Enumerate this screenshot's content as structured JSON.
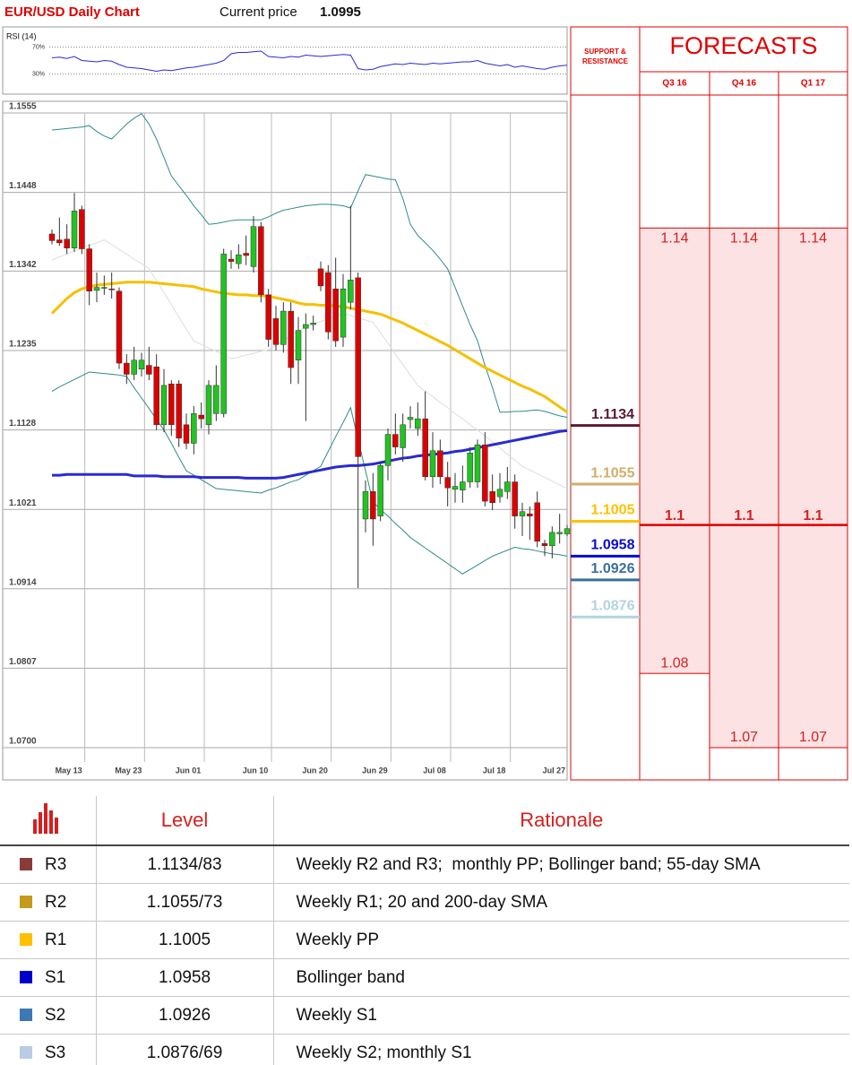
{
  "header": {
    "title": "EUR/USD Daily Chart",
    "current_price_label": "Current price",
    "current_price": 1.0995
  },
  "chart_data": [
    {
      "type": "line",
      "label": "RSI (14)",
      "color": "#2a2ad8",
      "values": [
        54,
        55,
        53,
        56,
        50,
        49,
        48,
        50,
        49,
        44,
        40,
        39,
        38,
        36,
        34,
        36,
        35,
        37,
        39,
        40,
        42,
        44,
        46,
        50,
        60,
        62,
        62,
        63,
        64,
        56,
        55,
        54,
        56,
        55,
        58,
        57,
        56,
        57,
        58,
        59,
        58,
        38,
        36,
        37,
        41,
        43,
        45,
        44,
        46,
        45,
        44,
        46,
        45,
        46,
        47,
        48,
        48,
        50,
        46,
        44,
        42,
        44,
        40,
        42,
        40,
        38,
        37,
        40,
        42,
        43
      ],
      "ylim": [
        0,
        100
      ],
      "yticks": [
        {
          "value": 70,
          "label": "70%"
        },
        {
          "value": 30,
          "label": "30%"
        }
      ]
    },
    {
      "type": "candlestick",
      "up_color": "#22c322",
      "down_color": "#dd0000",
      "categories": [
        null,
        null,
        "May 13",
        null,
        null,
        null,
        null,
        null,
        null,
        null,
        "May 23",
        null,
        null,
        null,
        null,
        null,
        null,
        null,
        "Jun 01",
        null,
        null,
        null,
        null,
        null,
        null,
        null,
        null,
        "Jun 10",
        null,
        null,
        null,
        null,
        null,
        null,
        null,
        "Jun 20",
        null,
        null,
        null,
        null,
        null,
        null,
        null,
        "Jun 29",
        null,
        null,
        null,
        null,
        null,
        null,
        null,
        "Jul 08",
        null,
        null,
        null,
        null,
        null,
        null,
        null,
        "Jul 18",
        null,
        null,
        null,
        null,
        null,
        null,
        null,
        "Jul 27",
        null,
        null
      ],
      "open": [
        1.1392,
        1.1384,
        1.1385,
        1.1373,
        1.1425,
        1.1372,
        1.1316,
        1.1319,
        1.1318,
        1.1315,
        1.1218,
        1.1203,
        1.121,
        1.1215,
        1.1213,
        1.1135,
        1.119,
        1.119,
        1.1135,
        1.111,
        1.1148,
        1.1135,
        1.115,
        1.115,
        1.1358,
        1.1352,
        1.1366,
        1.1348,
        1.1402,
        1.131,
        1.1278,
        1.1243,
        1.1288,
        1.1222,
        1.1265,
        1.127,
        1.1345,
        1.134,
        1.1318,
        1.1253,
        1.13,
        1.1333,
        1.1008,
        1.1045,
        1.1012,
        1.108,
        1.1122,
        1.1104,
        1.1142,
        1.113,
        1.1143,
        1.1065,
        1.11,
        1.1064,
        1.1048,
        1.1047,
        1.1058,
        1.1058,
        1.1108,
        1.1045,
        1.1038,
        1.1045,
        1.1058,
        1.1012,
        1.1015,
        1.103,
        1.0975,
        1.0972,
        1.0988,
        1.0988
      ],
      "high": [
        1.1398,
        1.1414,
        1.1405,
        1.1447,
        1.143,
        1.1378,
        1.134,
        1.1336,
        1.134,
        1.132,
        1.123,
        1.124,
        1.1232,
        1.124,
        1.123,
        1.121,
        1.1195,
        1.1195,
        1.115,
        1.116,
        1.1165,
        1.1195,
        1.1215,
        1.1372,
        1.137,
        1.1378,
        1.139,
        1.1416,
        1.1408,
        1.1318,
        1.1295,
        1.13,
        1.13,
        1.128,
        1.1285,
        1.1282,
        1.1355,
        1.135,
        1.136,
        1.1338,
        1.143,
        1.134,
        1.106,
        1.107,
        1.1085,
        1.113,
        1.115,
        1.115,
        1.116,
        1.1165,
        1.118,
        1.1125,
        1.1115,
        1.1085,
        1.107,
        1.108,
        1.1105,
        1.1115,
        1.1125,
        1.1068,
        1.107,
        1.1078,
        1.1068,
        1.103,
        1.1025,
        1.1045,
        1.098,
        1.0998,
        1.1015,
        1.1
      ],
      "low": [
        1.1378,
        1.1376,
        1.1365,
        1.1368,
        1.1365,
        1.1296,
        1.13,
        1.131,
        1.1305,
        1.121,
        1.119,
        1.1195,
        1.12,
        1.1195,
        1.1128,
        1.1125,
        1.112,
        1.1105,
        1.1102,
        1.1095,
        1.113,
        1.1122,
        1.114,
        1.1145,
        1.1345,
        1.1345,
        1.135,
        1.134,
        1.13,
        1.124,
        1.1235,
        1.1232,
        1.119,
        1.119,
        1.114,
        1.1262,
        1.1315,
        1.125,
        1.124,
        1.124,
        1.129,
        1.0915,
        1.099,
        1.0972,
        1.1005,
        1.106,
        1.1095,
        1.1085,
        1.113,
        1.112,
        1.106,
        1.105,
        1.1055,
        1.1025,
        1.103,
        1.103,
        1.105,
        1.105,
        1.1025,
        1.102,
        1.103,
        1.1035,
        1.0995,
        1.0985,
        1.098,
        1.097,
        1.0958,
        1.0955,
        1.0975,
        1.0985
      ],
      "close": [
        1.1383,
        1.138,
        1.1373,
        1.1423,
        1.1372,
        1.1315,
        1.132,
        1.132,
        1.1317,
        1.1218,
        1.1203,
        1.1222,
        1.1222,
        1.1203,
        1.1135,
        1.1188,
        1.1135,
        1.1117,
        1.111,
        1.115,
        1.1143,
        1.1188,
        1.1188,
        1.1365,
        1.1355,
        1.1364,
        1.1363,
        1.1402,
        1.131,
        1.125,
        1.1243,
        1.1288,
        1.1212,
        1.1262,
        1.127,
        1.1272,
        1.1322,
        1.126,
        1.1248,
        1.1318,
        1.133,
        1.1092,
        1.1045,
        1.1008,
        1.108,
        1.1122,
        1.1105,
        1.1135,
        1.1145,
        1.1143,
        1.1065,
        1.11,
        1.1065,
        1.105,
        1.1052,
        1.1058,
        1.1097,
        1.1108,
        1.1032,
        1.103,
        1.1048,
        1.1058,
        1.1012,
        1.1018,
        1.1012,
        1.0978,
        1.0972,
        1.099,
        1.099,
        1.0995
      ],
      "series": [
        {
          "color": "#f5c000",
          "values": [
            1.1285,
            1.1295,
            1.1305,
            1.1313,
            1.1318,
            1.1321,
            1.1323,
            1.1324,
            1.1325,
            1.1326,
            1.1327,
            1.1327,
            1.1327,
            1.1327,
            1.1326,
            1.1325,
            1.1324,
            1.1323,
            1.1322,
            1.1321,
            1.1318,
            1.1316,
            1.1314,
            1.1312,
            1.1311,
            1.131,
            1.131,
            1.1309,
            1.1309,
            1.1308,
            1.1306,
            1.1304,
            1.1302,
            1.1299,
            1.1297,
            1.1297,
            1.1296,
            1.1296,
            1.1295,
            1.1294,
            1.1292,
            1.129,
            1.1288,
            1.1286,
            1.1284,
            1.128,
            1.1276,
            1.1272,
            1.1267,
            1.1262,
            1.1257,
            1.1252,
            1.1247,
            1.1242,
            1.1236,
            1.123,
            1.1224,
            1.1218,
            1.1212,
            1.1207,
            1.1202,
            1.1197,
            1.1192,
            1.1187,
            1.1183,
            1.1178,
            1.1173,
            1.1166,
            1.1159,
            1.1152
          ]
        },
        {
          "color": "#2a2ad0",
          "values": [
            1.1067,
            1.1067,
            1.1068,
            1.1068,
            1.1068,
            1.1068,
            1.1068,
            1.1068,
            1.1068,
            1.1068,
            1.1068,
            1.1066,
            1.1066,
            1.1066,
            1.1066,
            1.1065,
            1.1065,
            1.1065,
            1.1065,
            1.1065,
            1.1064,
            1.1064,
            1.1064,
            1.1064,
            1.1064,
            1.1064,
            1.1063,
            1.1063,
            1.1063,
            1.1063,
            1.1063,
            1.1064,
            1.1066,
            1.1068,
            1.107,
            1.1072,
            1.1074,
            1.1076,
            1.1078,
            1.1079,
            1.108,
            1.108,
            1.1081,
            1.1082,
            1.1084,
            1.1086,
            1.1088,
            1.109,
            1.1091,
            1.1093,
            1.1094,
            1.1095,
            1.1096,
            1.1097,
            1.1099,
            1.11,
            1.1102,
            1.1104,
            1.1106,
            1.1108,
            1.111,
            1.1112,
            1.1114,
            1.1116,
            1.1118,
            1.112,
            1.1122,
            1.1124,
            1.1126,
            1.1127
          ]
        },
        {
          "color": "#2f8a8a",
          "values": [
            1.1532,
            1.1533,
            1.1534,
            1.1535,
            1.1536,
            1.1538,
            1.153,
            1.1524,
            1.152,
            1.153,
            1.154,
            1.1548,
            1.1554,
            1.154,
            1.152,
            1.1495,
            1.147,
            1.1457,
            1.1444,
            1.143,
            1.1418,
            1.1405,
            1.1406,
            1.1408,
            1.141,
            1.1411,
            1.1411,
            1.1411,
            1.1411,
            1.1415,
            1.142,
            1.1424,
            1.1426,
            1.1428,
            1.143,
            1.1431,
            1.1432,
            1.1432,
            1.1431,
            1.143,
            1.1427,
            1.145,
            1.1472,
            1.147,
            1.1468,
            1.1466,
            1.1465,
            1.144,
            1.1405,
            1.139,
            1.138,
            1.137,
            1.1358,
            1.1345,
            1.132,
            1.1295,
            1.127,
            1.1248,
            1.1215,
            1.1185,
            1.1152,
            1.1152,
            1.1153,
            1.1153,
            1.1154,
            1.1155,
            1.1153,
            1.115,
            1.1147,
            1.1145
          ]
        },
        {
          "color": "#2f8a8a",
          "values": [
            1.118,
            1.1186,
            1.1191,
            1.1196,
            1.1201,
            1.1206,
            1.1205,
            1.1204,
            1.1203,
            1.1202,
            1.12,
            1.1185,
            1.1171,
            1.1157,
            1.1142,
            1.1128,
            1.111,
            1.1091,
            1.1073,
            1.1067,
            1.1061,
            1.1055,
            1.1049,
            1.1048,
            1.1047,
            1.1046,
            1.1045,
            1.1044,
            1.1043,
            1.1047,
            1.105,
            1.1054,
            1.1058,
            1.1061,
            1.1067,
            1.1073,
            1.1079,
            1.1099,
            1.1119,
            1.1138,
            1.1158,
            1.1115,
            1.1073,
            1.1031,
            1.1021,
            1.1012,
            1.1002,
            1.0993,
            1.0983,
            1.0976,
            1.0969,
            1.0962,
            1.0955,
            1.0948,
            1.0941,
            1.0934,
            1.094,
            1.0946,
            1.0952,
            1.0958,
            1.0962,
            1.0966,
            1.097,
            1.0968,
            1.0967,
            1.0965,
            1.0963,
            1.0961,
            1.096,
            1.0958
          ]
        },
        {
          "color": "#dddddd",
          "values": [
            1.1357,
            1.1361,
            1.1365,
            1.1369,
            1.1373,
            1.1377,
            1.138,
            1.1384,
            1.1378,
            1.1371,
            1.1365,
            1.1358,
            1.1352,
            1.1345,
            1.1329,
            1.1313,
            1.1297,
            1.128,
            1.1264,
            1.1248,
            1.1243,
            1.1238,
            1.1234,
            1.1229,
            1.1224,
            1.1226,
            1.1229,
            1.1231,
            1.1234,
            1.1236,
            1.1242,
            1.1248,
            1.1255,
            1.1261,
            1.1267,
            1.1271,
            1.1274,
            1.1278,
            1.1281,
            1.1285,
            1.1282,
            1.1279,
            1.1276,
            1.1273,
            1.1259,
            1.1245,
            1.123,
            1.1216,
            1.1202,
            1.1188,
            1.118,
            1.1173,
            1.1165,
            1.1158,
            1.115,
            1.1143,
            1.1135,
            1.1128,
            1.112,
            1.1112,
            1.1104,
            1.1095,
            1.1087,
            1.1079,
            1.1074,
            1.1069,
            1.1064,
            1.1059,
            1.1054,
            1.1049
          ]
        }
      ],
      "ylim": [
        1.07,
        1.1555
      ],
      "yticks": [
        1.1555,
        1.1448,
        1.1342,
        1.1235,
        1.1128,
        1.1021,
        1.0914,
        1.0807,
        {
          "value": 1.07,
          "label": "1.0700"
        }
      ],
      "grid": true
    }
  ],
  "support_resistance": {
    "title": "SUPPORT & RESISTANCE",
    "levels": [
      {
        "value": 1.1134,
        "color": "#5a1a33"
      },
      {
        "value": 1.1055,
        "color": "#d2ad6a"
      },
      {
        "value": 1.1005,
        "color": "#ffc000"
      },
      {
        "value": 1.0958,
        "color": "#0a0ad0"
      },
      {
        "value": 1.0926,
        "color": "#3a6f9a"
      },
      {
        "value": 1.0876,
        "color": "#b0d4e0"
      }
    ]
  },
  "forecasts": {
    "title": "FORECASTS",
    "columns": [
      {
        "label": "Q3 16",
        "high": 1.14,
        "mid": 1.1,
        "low": 1.08
      },
      {
        "label": "Q4 16",
        "high": 1.14,
        "mid": 1.1,
        "low": 1.07
      },
      {
        "label": "Q1 17",
        "high": 1.14,
        "mid": 1.1,
        "low": 1.07
      }
    ]
  },
  "table": {
    "header": [
      "Level",
      "Rationale"
    ],
    "rows": [
      {
        "color": "#8b3a3a",
        "name": "R3",
        "level": "1.1134/83",
        "rationale": "Weekly R2 and R3;  monthly PP; Bollinger band; 55-day SMA"
      },
      {
        "color": "#c49a1a",
        "name": "R2",
        "level": "1.1055/73",
        "rationale": "Weekly R1; 20 and 200-day SMA"
      },
      {
        "color": "#ffc000",
        "name": "R1",
        "level": "1.1005",
        "rationale": "Weekly PP"
      },
      {
        "color": "#0000cc",
        "name": "S1",
        "level": "1.0958",
        "rationale": "Bollinger band"
      },
      {
        "color": "#3d7ab5",
        "name": "S2",
        "level": "1.0926",
        "rationale": "Weekly S1"
      },
      {
        "color": "#b8cce4",
        "name": "S3",
        "level": "1.0876/69",
        "rationale": "Weekly S2; monthly S1"
      }
    ]
  }
}
